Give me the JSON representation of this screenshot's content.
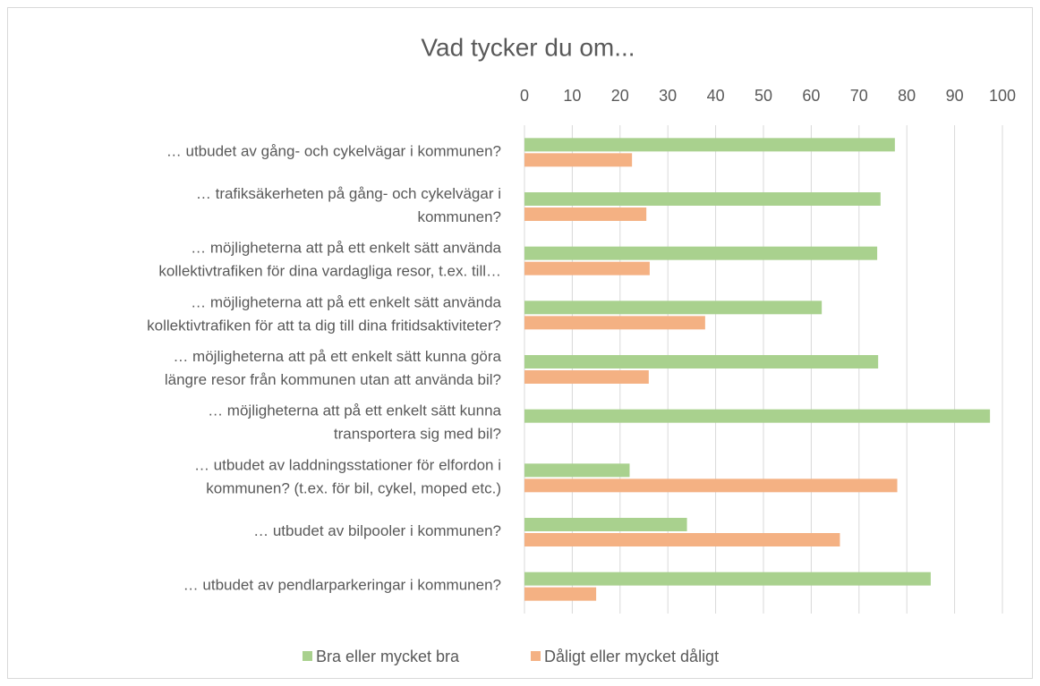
{
  "chart_data": {
    "type": "bar",
    "orientation": "horizontal",
    "title": "Vad tycker du om...",
    "categories": [
      [
        "… utbudet av gång- och cykelvägar i kommunen?"
      ],
      [
        "… trafiksäkerheten på gång- och cykelvägar i",
        "kommunen?"
      ],
      [
        "… möjligheterna att på ett enkelt sätt använda",
        "kollektivtrafiken för dina vardagliga resor, t.ex. till…"
      ],
      [
        "… möjligheterna att på ett enkelt sätt använda",
        "kollektivtrafiken för att ta dig till dina fritidsaktiviteter?"
      ],
      [
        "… möjligheterna att på ett enkelt sätt kunna göra",
        "längre resor från kommunen utan att använda bil?"
      ],
      [
        "… möjligheterna att på ett enkelt sätt kunna",
        "transportera sig med bil?"
      ],
      [
        "… utbudet av laddningsstationer för elfordon i",
        "kommunen? (t.ex. för bil, cykel, moped etc.)"
      ],
      [
        "… utbudet av bilpooler i kommunen?"
      ],
      [
        "… utbudet av pendlarparkeringar i kommunen?"
      ]
    ],
    "series": [
      {
        "name": "Bra eller mycket bra",
        "color": "#a9d18e",
        "values": [
          77.5,
          74.5,
          73.8,
          62.2,
          74,
          97.4,
          22,
          34,
          85
        ]
      },
      {
        "name": "Dåligt eller mycket dåligt",
        "color": "#f4b183",
        "values": [
          22.5,
          25.5,
          26.2,
          37.8,
          26,
          0,
          78,
          66,
          15
        ]
      }
    ],
    "xlim": [
      0,
      100
    ],
    "xticks": [
      0,
      10,
      20,
      30,
      40,
      50,
      60,
      70,
      80,
      90,
      100
    ],
    "grid": true,
    "legend": "bottom"
  }
}
